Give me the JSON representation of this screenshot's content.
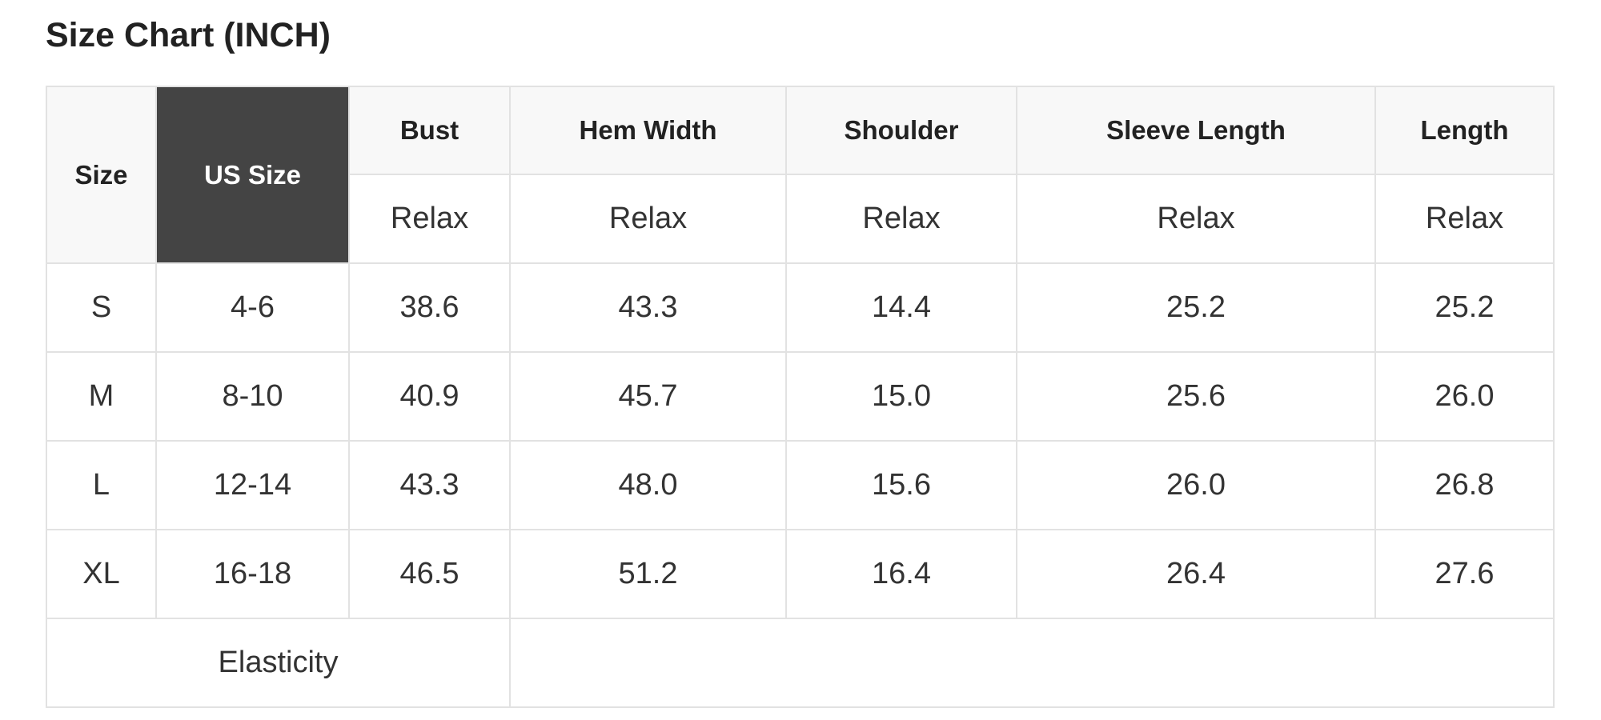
{
  "title": "Size Chart (INCH)",
  "header": {
    "size": "Size",
    "us_size": "US Size",
    "columns": [
      "Bust",
      "Hem Width",
      "Shoulder",
      "Sleeve Length",
      "Length"
    ],
    "subheaders": [
      "Relax",
      "Relax",
      "Relax",
      "Relax",
      "Relax"
    ]
  },
  "rows": [
    {
      "size": "S",
      "us_size": "4-6",
      "values": [
        "38.6",
        "43.3",
        "14.4",
        "25.2",
        "25.2"
      ]
    },
    {
      "size": "M",
      "us_size": "8-10",
      "values": [
        "40.9",
        "45.7",
        "15.0",
        "25.6",
        "26.0"
      ]
    },
    {
      "size": "L",
      "us_size": "12-14",
      "values": [
        "43.3",
        "48.0",
        "15.6",
        "26.0",
        "26.8"
      ]
    },
    {
      "size": "XL",
      "us_size": "16-18",
      "values": [
        "46.5",
        "51.2",
        "16.4",
        "26.4",
        "27.6"
      ]
    }
  ],
  "footer": {
    "label": "Elasticity",
    "value": ""
  },
  "colors": {
    "header_bg": "#f8f8f8",
    "us_size_bg": "#444444",
    "border": "#e2e2e2"
  }
}
